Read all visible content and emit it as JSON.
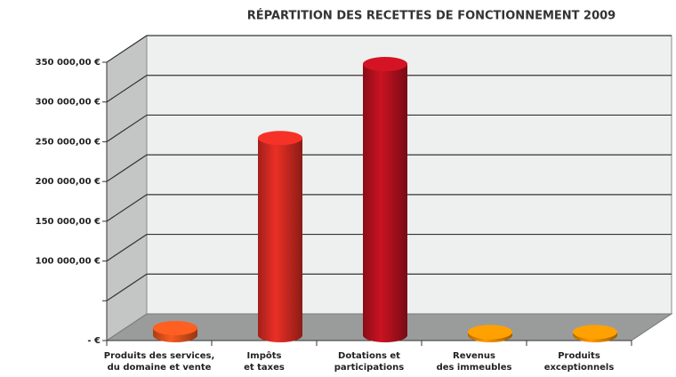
{
  "chart_data": {
    "type": "bar3d",
    "title": "RÉPARTITION DES RECETTES DE FONCTIONNEMENT 2009",
    "categories": [
      [
        "Produits des services,",
        "du domaine et vente"
      ],
      [
        "Impôts",
        "et taxes"
      ],
      [
        "Dotations et",
        "participations"
      ],
      [
        "Revenus",
        "des immeubles"
      ],
      [
        "Produits",
        "exceptionnels"
      ]
    ],
    "values": [
      9000,
      248000,
      341000,
      4000,
      4000
    ],
    "colors": [
      "#e2531c",
      "#d62b22",
      "#b8111f",
      "#f08c00",
      "#f08c00"
    ],
    "ylim": [
      0,
      350000
    ],
    "yticks": [
      {
        "value": 0,
        "label": "- €"
      },
      {
        "value": 50000,
        "label": null
      },
      {
        "value": 100000,
        "label": "100 000,00 €"
      },
      {
        "value": 150000,
        "label": "150 000,00 €"
      },
      {
        "value": 200000,
        "label": "200 000,00 €"
      },
      {
        "value": 250000,
        "label": "250 000,00 €"
      },
      {
        "value": 300000,
        "label": "300 000,00 €"
      },
      {
        "value": 350000,
        "label": "350 000,00 €"
      }
    ],
    "grid": true
  }
}
